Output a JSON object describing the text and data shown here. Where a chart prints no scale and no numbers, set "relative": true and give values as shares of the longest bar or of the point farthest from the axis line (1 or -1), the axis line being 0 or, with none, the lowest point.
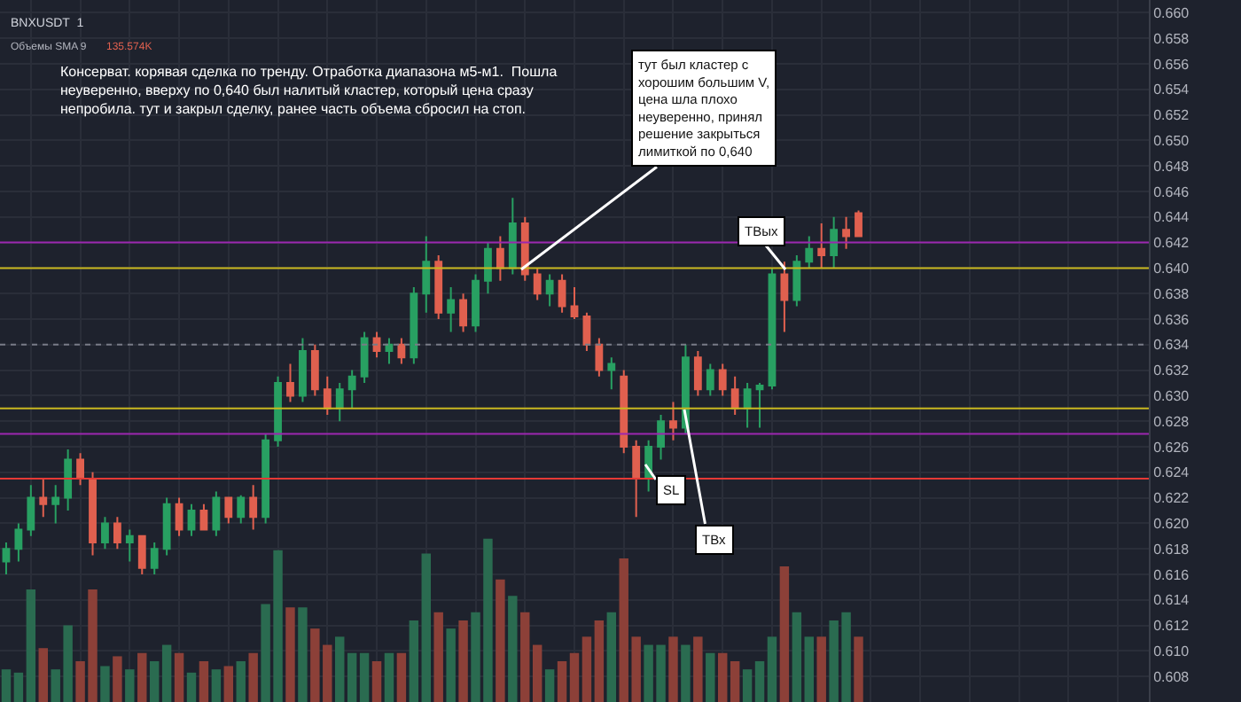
{
  "chart_data": [
    {
      "type": "candlestick",
      "categories": [
        null,
        null,
        null,
        null,
        null,
        null,
        null,
        null,
        null,
        null,
        null,
        null,
        null,
        null,
        null,
        null,
        null,
        null,
        null,
        null,
        null,
        null,
        null,
        null,
        null,
        null,
        null,
        null,
        null,
        null,
        null,
        null,
        null,
        null,
        null,
        null,
        null,
        null,
        null,
        null,
        null,
        null,
        null,
        null,
        null,
        null,
        null,
        null,
        null,
        null,
        null,
        null,
        null,
        null,
        null,
        null,
        null,
        null,
        null,
        null,
        null,
        null,
        null,
        null,
        null,
        null,
        null,
        null,
        null,
        null,
        null,
        null,
        null,
        null,
        null,
        null,
        null,
        null,
        null,
        null,
        null,
        null,
        null,
        null,
        null,
        null,
        null,
        null,
        null,
        null,
        null,
        null,
        null
      ],
      "ohlc": [
        [
          0.617,
          0.6185,
          0.616,
          0.618
        ],
        [
          0.618,
          0.62,
          0.617,
          0.6195
        ],
        [
          0.6195,
          0.623,
          0.619,
          0.622
        ],
        [
          0.622,
          0.6235,
          0.6205,
          0.6215
        ],
        [
          0.6215,
          0.623,
          0.62,
          0.622
        ],
        [
          0.622,
          0.6258,
          0.621,
          0.625
        ],
        [
          0.625,
          0.6255,
          0.623,
          0.6235
        ],
        [
          0.6235,
          0.624,
          0.6175,
          0.6185
        ],
        [
          0.6185,
          0.6205,
          0.618,
          0.62
        ],
        [
          0.62,
          0.6205,
          0.618,
          0.6185
        ],
        [
          0.6185,
          0.6195,
          0.617,
          0.619
        ],
        [
          0.619,
          0.619,
          0.616,
          0.6165
        ],
        [
          0.6165,
          0.6185,
          0.616,
          0.618
        ],
        [
          0.618,
          0.622,
          0.6175,
          0.6215
        ],
        [
          0.6215,
          0.622,
          0.619,
          0.6195
        ],
        [
          0.6195,
          0.6215,
          0.619,
          0.621
        ],
        [
          0.621,
          0.6215,
          0.6195,
          0.6195
        ],
        [
          0.6195,
          0.6225,
          0.619,
          0.622
        ],
        [
          0.622,
          0.622,
          0.62,
          0.6205
        ],
        [
          0.6205,
          0.6222,
          0.62,
          0.622
        ],
        [
          0.622,
          0.623,
          0.6195,
          0.6205
        ],
        [
          0.6205,
          0.627,
          0.62,
          0.6265
        ],
        [
          0.6265,
          0.6315,
          0.626,
          0.631
        ],
        [
          0.631,
          0.6325,
          0.6295,
          0.63
        ],
        [
          0.63,
          0.6345,
          0.6295,
          0.6335
        ],
        [
          0.6335,
          0.634,
          0.63,
          0.6305
        ],
        [
          0.6305,
          0.6315,
          0.6285,
          0.629
        ],
        [
          0.629,
          0.631,
          0.628,
          0.6305
        ],
        [
          0.6305,
          0.632,
          0.629,
          0.6315
        ],
        [
          0.6315,
          0.635,
          0.631,
          0.6345
        ],
        [
          0.6345,
          0.635,
          0.633,
          0.6335
        ],
        [
          0.6335,
          0.6345,
          0.6325,
          0.634
        ],
        [
          0.634,
          0.6345,
          0.6325,
          0.633
        ],
        [
          0.633,
          0.6385,
          0.6325,
          0.638
        ],
        [
          0.638,
          0.6425,
          0.6365,
          0.6405
        ],
        [
          0.6405,
          0.641,
          0.636,
          0.6365
        ],
        [
          0.6365,
          0.6385,
          0.635,
          0.6375
        ],
        [
          0.6375,
          0.638,
          0.635,
          0.6355
        ],
        [
          0.6355,
          0.6395,
          0.635,
          0.639
        ],
        [
          0.639,
          0.642,
          0.638,
          0.6415
        ],
        [
          0.6415,
          0.6425,
          0.639,
          0.64
        ],
        [
          0.64,
          0.6455,
          0.6395,
          0.6435
        ],
        [
          0.6435,
          0.644,
          0.639,
          0.6395
        ],
        [
          0.6395,
          0.64,
          0.6375,
          0.638
        ],
        [
          0.638,
          0.6395,
          0.637,
          0.639
        ],
        [
          0.639,
          0.6395,
          0.6365,
          0.637
        ],
        [
          0.637,
          0.6385,
          0.636,
          0.6362
        ],
        [
          0.6362,
          0.6365,
          0.6335,
          0.634
        ],
        [
          0.634,
          0.6345,
          0.6315,
          0.632
        ],
        [
          0.632,
          0.633,
          0.6305,
          0.6325
        ],
        [
          0.6315,
          0.632,
          0.6255,
          0.626
        ],
        [
          0.626,
          0.6265,
          0.6205,
          0.6235
        ],
        [
          0.6235,
          0.6265,
          0.6225,
          0.626
        ],
        [
          0.626,
          0.6285,
          0.625,
          0.628
        ],
        [
          0.628,
          0.6295,
          0.6265,
          0.6275
        ],
        [
          0.6275,
          0.634,
          0.627,
          0.633
        ],
        [
          0.633,
          0.6335,
          0.63,
          0.6305
        ],
        [
          0.6305,
          0.6325,
          0.63,
          0.632
        ],
        [
          0.632,
          0.6325,
          0.63,
          0.6305
        ],
        [
          0.6305,
          0.6315,
          0.6285,
          0.629
        ],
        [
          0.629,
          0.631,
          0.6275,
          0.6305
        ],
        [
          0.6305,
          0.631,
          0.6275,
          0.6308
        ],
        [
          0.6308,
          0.64,
          0.6305,
          0.6395
        ],
        [
          0.6395,
          0.6405,
          0.635,
          0.6375
        ],
        [
          0.6375,
          0.641,
          0.637,
          0.6405
        ],
        [
          0.6405,
          0.6425,
          0.64,
          0.6415
        ],
        [
          0.6415,
          0.6435,
          0.64,
          0.641
        ],
        [
          0.641,
          0.644,
          0.64,
          0.643
        ],
        [
          0.643,
          0.644,
          0.6415,
          0.6425
        ],
        [
          0.6443,
          0.6445,
          0.6425,
          0.6425
        ],
        null,
        null,
        null,
        null,
        null,
        null,
        null,
        null,
        null,
        null,
        null,
        null,
        null,
        null,
        null,
        null,
        null,
        null,
        null,
        null,
        null,
        null,
        null
      ],
      "colors": [
        "#28a062",
        "#28a062",
        "#28a062",
        "#e0604f",
        "#28a062",
        "#28a062",
        "#e0604f",
        "#e0604f",
        "#28a062",
        "#e0604f",
        "#28a062",
        "#e0604f",
        "#28a062",
        "#28a062",
        "#e0604f",
        "#28a062",
        "#e0604f",
        "#28a062",
        "#e0604f",
        "#28a062",
        "#e0604f",
        "#28a062",
        "#28a062",
        "#e0604f",
        "#28a062",
        "#e0604f",
        "#e0604f",
        "#28a062",
        "#28a062",
        "#28a062",
        "#e0604f",
        "#28a062",
        "#e0604f",
        "#28a062",
        "#28a062",
        "#e0604f",
        "#28a062",
        "#e0604f",
        "#28a062",
        "#28a062",
        "#e0604f",
        "#28a062",
        "#e0604f",
        "#e0604f",
        "#28a062",
        "#e0604f",
        "#e0604f",
        "#e0604f",
        "#e0604f",
        "#28a062",
        "#e0604f",
        "#e0604f",
        "#28a062",
        "#28a062",
        "#e0604f",
        "#28a062",
        "#e0604f",
        "#28a062",
        "#e0604f",
        "#e0604f",
        "#28a062",
        "#28a062",
        "#28a062",
        "#e0604f",
        "#28a062",
        "#28a062",
        "#e0604f",
        "#28a062",
        "#e0604f",
        "#e0604f",
        null,
        null,
        null,
        null,
        null,
        null,
        null,
        null,
        null,
        null,
        null,
        null,
        null,
        null,
        null,
        null,
        null,
        null,
        null,
        null,
        null,
        null,
        null
      ],
      "ylim": [
        0.606,
        0.661
      ],
      "yticks": [
        0.608,
        {
          "value": 0.61,
          "label": "0.610"
        },
        0.612,
        0.614,
        0.616,
        0.618,
        {
          "value": 0.62,
          "label": "0.620"
        },
        0.622,
        0.624,
        0.626,
        0.628,
        {
          "value": 0.63,
          "label": "0.630"
        },
        0.632,
        0.634,
        0.636,
        0.638,
        {
          "value": 0.64,
          "label": "0.640"
        },
        0.642,
        0.644,
        0.646,
        0.648,
        {
          "value": 0.65,
          "label": "0.650"
        },
        0.652,
        0.654,
        0.656,
        0.658,
        {
          "value": 0.66,
          "label": "0.660"
        }
      ],
      "grid": true,
      "tick_labels": "y",
      "ref_lines": [
        {
          "axis": "y",
          "value": 0.642,
          "color": "#9c27b0"
        },
        {
          "axis": "y",
          "value": 0.627,
          "color": "#9c27b0"
        },
        {
          "axis": "y",
          "value": 0.64,
          "color": "#c9b820"
        },
        {
          "axis": "y",
          "value": 0.629,
          "color": "#c9b820"
        },
        {
          "axis": "y",
          "value": 0.6235,
          "color": "#e53935"
        },
        {
          "axis": "y",
          "value": 0.634,
          "color": "#787b86",
          "line_style": "dotted"
        }
      ],
      "annotations": [
        "BNXUSDT  1",
        "Объемы SMA 9",
        "135.574K",
        "Консерват. корявая сделка по тренду. Отработка диапазона м5-м1.  Пошла\nнеуверенно, вверху по 0,640 был налитый кластер, который цена сразу\nнепробила. тут и закрыл сделку, ранее часть объема сбросил на стоп.",
        "тут был кластер с\nхорошим большим V,\nцена шла плохо\nнеуверенно, принял\nрешение закрыться\nлимиткой по 0,640",
        "ТВых",
        "ТВх",
        "SL"
      ]
    },
    {
      "type": "bar",
      "relative": true,
      "tick_labels": false,
      "categories": [
        null,
        null,
        null,
        null,
        null,
        null,
        null,
        null,
        null,
        null,
        null,
        null,
        null,
        null,
        null,
        null,
        null,
        null,
        null,
        null,
        null,
        null,
        null,
        null,
        null,
        null,
        null,
        null,
        null,
        null,
        null,
        null,
        null,
        null,
        null,
        null,
        null,
        null,
        null,
        null,
        null,
        null,
        null,
        null,
        null,
        null,
        null,
        null,
        null,
        null,
        null,
        null,
        null,
        null,
        null,
        null,
        null,
        null,
        null,
        null,
        null,
        null,
        null,
        null,
        null,
        null,
        null,
        null,
        null,
        null,
        null,
        null,
        null,
        null,
        null,
        null,
        null,
        null,
        null,
        null,
        null,
        null,
        null,
        null,
        null,
        null,
        null,
        null,
        null,
        null,
        null,
        null,
        null
      ],
      "values": [
        0.2,
        0.18,
        0.69,
        0.33,
        0.2,
        0.47,
        0.25,
        0.69,
        0.22,
        0.28,
        0.2,
        0.3,
        0.25,
        0.35,
        0.3,
        0.18,
        0.25,
        0.2,
        0.22,
        0.25,
        0.3,
        0.6,
        0.93,
        0.58,
        0.58,
        0.45,
        0.35,
        0.4,
        0.3,
        0.3,
        0.25,
        0.3,
        0.3,
        0.5,
        0.91,
        0.55,
        0.45,
        0.5,
        0.55,
        1.0,
        0.75,
        0.65,
        0.55,
        0.35,
        0.2,
        0.25,
        0.3,
        0.4,
        0.5,
        0.55,
        0.88,
        0.4,
        0.35,
        0.35,
        0.4,
        0.35,
        0.4,
        0.3,
        0.3,
        0.25,
        0.2,
        0.25,
        0.4,
        0.83,
        0.55,
        0.4,
        0.4,
        0.5,
        0.55,
        0.4,
        null,
        null,
        null,
        null,
        null,
        null,
        null,
        null,
        null,
        null,
        null,
        null,
        null,
        null,
        null,
        null,
        null,
        null,
        null,
        null,
        null,
        null,
        null
      ],
      "colors": [
        "#2a6b50",
        "#2a6b50",
        "#2a6b50",
        "#8c4038",
        "#2a6b50",
        "#2a6b50",
        "#8c4038",
        "#8c4038",
        "#2a6b50",
        "#8c4038",
        "#2a6b50",
        "#8c4038",
        "#2a6b50",
        "#2a6b50",
        "#8c4038",
        "#2a6b50",
        "#8c4038",
        "#2a6b50",
        "#8c4038",
        "#2a6b50",
        "#8c4038",
        "#2a6b50",
        "#2a6b50",
        "#8c4038",
        "#2a6b50",
        "#8c4038",
        "#8c4038",
        "#2a6b50",
        "#2a6b50",
        "#2a6b50",
        "#8c4038",
        "#2a6b50",
        "#8c4038",
        "#2a6b50",
        "#2a6b50",
        "#8c4038",
        "#2a6b50",
        "#8c4038",
        "#2a6b50",
        "#2a6b50",
        "#8c4038",
        "#2a6b50",
        "#8c4038",
        "#8c4038",
        "#2a6b50",
        "#8c4038",
        "#8c4038",
        "#8c4038",
        "#8c4038",
        "#2a6b50",
        "#8c4038",
        "#8c4038",
        "#2a6b50",
        "#2a6b50",
        "#8c4038",
        "#2a6b50",
        "#8c4038",
        "#2a6b50",
        "#8c4038",
        "#8c4038",
        "#2a6b50",
        "#2a6b50",
        "#2a6b50",
        "#8c4038",
        "#2a6b50",
        "#2a6b50",
        "#8c4038",
        "#2a6b50",
        "#2a6b50",
        "#8c4038",
        null,
        null,
        null,
        null,
        null,
        null,
        null,
        null,
        null,
        null,
        null,
        null,
        null,
        null,
        null,
        null,
        null,
        null,
        null,
        null,
        null,
        null,
        null
      ]
    }
  ]
}
